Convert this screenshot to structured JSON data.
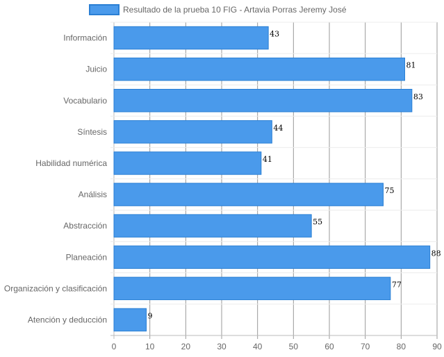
{
  "chart_data": {
    "type": "bar",
    "orientation": "horizontal",
    "categories": [
      "Información",
      "Juicio",
      "Vocabulario",
      "Síntesis",
      "Habilidad numérica",
      "Análisis",
      "Abstracción",
      "Planeación",
      "Organización y clasificación",
      "Atención y deducción"
    ],
    "series": [
      {
        "name": "Resultado de la prueba 10 FIG - Artavia Porras Jeremy José",
        "values": [
          43,
          81,
          83,
          44,
          41,
          75,
          55,
          88,
          77,
          9
        ],
        "color": "#4a9aeb",
        "border_color": "#2a7fd4"
      }
    ],
    "xlim": [
      0,
      90
    ],
    "x_ticks": [
      0,
      10,
      20,
      30,
      40,
      50,
      60,
      70,
      80,
      90
    ],
    "grid": true,
    "legend_position": "top",
    "data_labels": true
  }
}
